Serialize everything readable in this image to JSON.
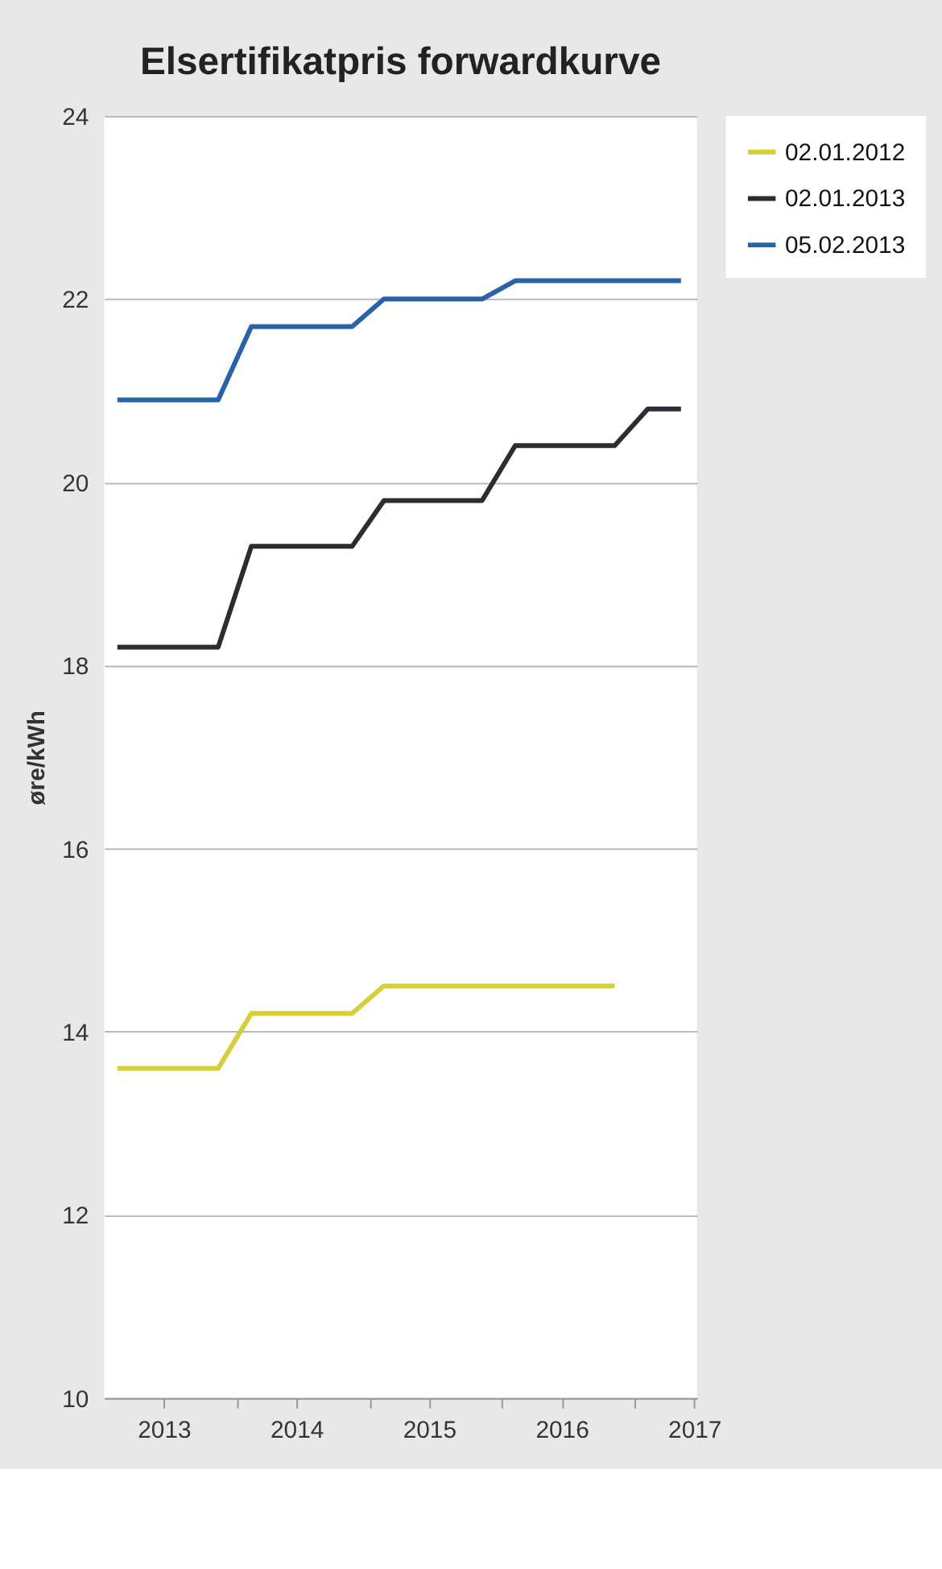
{
  "chart_data": {
    "type": "line",
    "title": "Elsertifikatpris forwardkurve",
    "ylabel": "øre/kWh",
    "xlim": [
      2013,
      2017.47
    ],
    "xticks": [
      {
        "value": 2014,
        "label": null
      },
      {
        "value": 2015,
        "label": null
      },
      {
        "value": 2016,
        "label": null
      },
      {
        "value": 2017,
        "label": null
      },
      {
        "value": 2013.45,
        "label": "2013"
      },
      {
        "value": 2014.45,
        "label": "2014"
      },
      {
        "value": 2015.45,
        "label": "2015"
      },
      {
        "value": 2016.45,
        "label": "2016"
      },
      {
        "value": 2017.45,
        "label": "2017"
      }
    ],
    "ylim": [
      10,
      24
    ],
    "yticks": [
      10,
      12,
      14,
      16,
      18,
      20,
      22,
      24
    ],
    "grid": "y",
    "legend": "right",
    "marker": "none",
    "line_style": "solid",
    "series": [
      {
        "name": "02.01.2012",
        "color": "#d4cf3a",
        "x": [
          2013.1,
          2013.86,
          2014.11,
          2014.87,
          2015.11,
          2015.85,
          2016.1,
          2016.85
        ],
        "values": [
          13.6,
          13.6,
          14.2,
          14.2,
          14.5,
          14.5,
          14.5,
          14.5
        ]
      },
      {
        "name": "02.01.2013",
        "color": "#2b2d33",
        "x": [
          2013.1,
          2013.86,
          2014.11,
          2014.87,
          2015.11,
          2015.85,
          2016.1,
          2016.85,
          2017.1,
          2017.35
        ],
        "values": [
          18.2,
          18.2,
          19.3,
          19.3,
          19.8,
          19.8,
          20.4,
          20.4,
          20.8,
          20.8
        ]
      },
      {
        "name": "05.02.2013",
        "color": "#2a62a8",
        "x": [
          2013.1,
          2013.86,
          2014.11,
          2014.87,
          2015.11,
          2015.85,
          2016.1,
          2017.35
        ],
        "values": [
          20.9,
          20.9,
          21.7,
          21.7,
          22.0,
          22.0,
          22.2,
          22.2
        ]
      }
    ]
  }
}
